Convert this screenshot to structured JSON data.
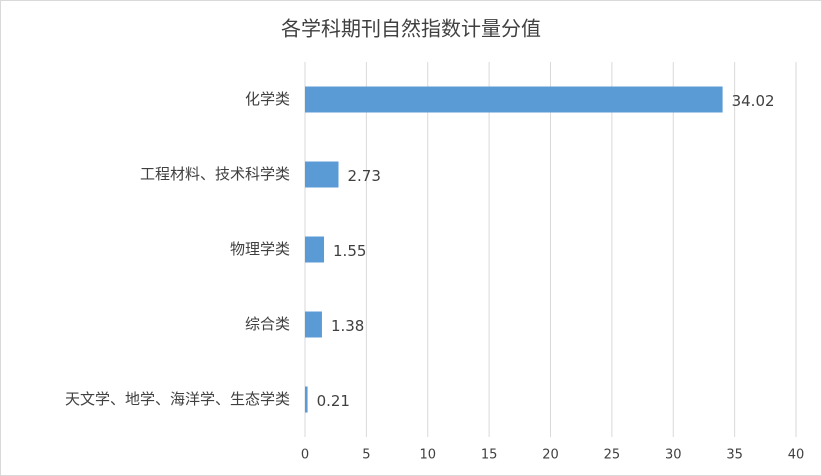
{
  "chart_data": {
    "type": "bar",
    "orientation": "horizontal",
    "title": "各学科期刊自然指数计量分值",
    "categories": [
      "化学类",
      "工程材料、技术科学类",
      "物理学类",
      "综合类",
      "天文学、地学、海洋学、生态学类"
    ],
    "values": [
      34.02,
      2.73,
      1.55,
      1.38,
      0.21
    ],
    "color": "#5b9bd5",
    "xlim": [
      0,
      40
    ],
    "xticks": [
      0,
      5,
      10,
      15,
      20,
      25,
      30,
      35,
      40
    ],
    "grid": true
  }
}
